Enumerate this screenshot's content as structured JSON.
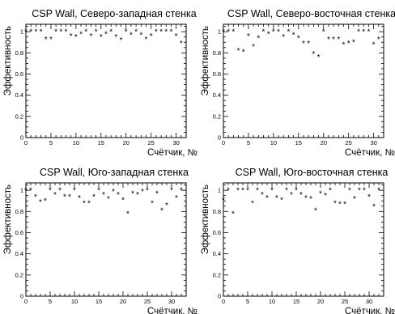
{
  "chart_data": [
    {
      "type": "scatter",
      "title": "CSP Wall, Северо-западная стенка",
      "xlabel": "Счётчик, №",
      "ylabel": "Эффективность",
      "xlim": [
        0,
        32
      ],
      "ylim": [
        0,
        1.07
      ],
      "xticks": [
        0,
        5,
        10,
        15,
        20,
        25,
        30
      ],
      "yticks": [
        0,
        0.2,
        0.4,
        0.6,
        0.8,
        1
      ],
      "marker": "*",
      "grid": false,
      "x": [
        0,
        1,
        2,
        3,
        4,
        5,
        6,
        7,
        8,
        9,
        10,
        11,
        12,
        13,
        14,
        15,
        16,
        17,
        18,
        19,
        20,
        21,
        22,
        23,
        24,
        25,
        26,
        27,
        28,
        29,
        30,
        31
      ],
      "y": [
        1,
        1,
        1,
        1,
        0.93,
        0.93,
        1,
        1,
        1,
        0.96,
        0.95,
        0.98,
        1,
        0.96,
        1,
        0.95,
        0.98,
        1,
        0.95,
        0.92,
        1,
        0.97,
        1,
        0.97,
        0.93,
        0.96,
        1,
        1,
        1,
        1,
        0.96,
        0.89
      ]
    },
    {
      "type": "scatter",
      "title": "CSP Wall, Северо-восточная стенка",
      "xlabel": "Счётчик, №",
      "ylabel": "Эффективность",
      "xlim": [
        0,
        32
      ],
      "ylim": [
        0,
        1.07
      ],
      "xticks": [
        0,
        5,
        10,
        15,
        20,
        25,
        30
      ],
      "yticks": [
        0,
        0.2,
        0.4,
        0.6,
        0.8,
        1
      ],
      "marker": "*",
      "grid": false,
      "x": [
        0,
        1,
        2,
        3,
        4,
        5,
        6,
        7,
        8,
        9,
        10,
        11,
        12,
        13,
        14,
        15,
        16,
        17,
        18,
        19,
        20,
        21,
        22,
        23,
        24,
        25,
        26,
        27,
        28,
        29,
        30,
        31
      ],
      "y": [
        1,
        1,
        1,
        0.82,
        0.81,
        0.96,
        0.86,
        0.94,
        1,
        0.98,
        1,
        1,
        0.95,
        1,
        0.97,
        0.94,
        0.89,
        0.89,
        0.79,
        0.76,
        1,
        0.93,
        0.93,
        0.93,
        0.88,
        0.89,
        0.9,
        1,
        1,
        1,
        0.88,
        0.93
      ]
    },
    {
      "type": "scatter",
      "title": "CSP Wall, Юго-западная стенка",
      "xlabel": "Счётчик, №",
      "ylabel": "Эффективность",
      "xlim": [
        0,
        33
      ],
      "ylim": [
        0,
        1.07
      ],
      "xticks": [
        0,
        5,
        10,
        15,
        20,
        25,
        30
      ],
      "yticks": [
        0,
        0.2,
        0.4,
        0.6,
        0.8,
        1
      ],
      "marker": "*",
      "grid": false,
      "x": [
        0,
        1,
        2,
        3,
        4,
        5,
        6,
        7,
        8,
        9,
        10,
        11,
        12,
        13,
        14,
        15,
        16,
        17,
        18,
        19,
        20,
        21,
        22,
        23,
        24,
        25,
        26,
        27,
        28,
        29,
        30,
        31,
        32
      ],
      "y": [
        1,
        1,
        0.94,
        0.89,
        0.9,
        1,
        0.96,
        1,
        0.94,
        0.94,
        1,
        0.93,
        0.88,
        0.88,
        0.94,
        1,
        0.96,
        0.92,
        0.99,
        0.96,
        0.91,
        0.78,
        0.97,
        0.96,
        0.99,
        1,
        0.88,
        0.97,
        0.81,
        0.86,
        1,
        0.93,
        1
      ]
    },
    {
      "type": "scatter",
      "title": "CSP Wall, Юго-восточная стенка",
      "xlabel": "Счётчик, №",
      "ylabel": "Эффективность",
      "xlim": [
        0,
        33
      ],
      "ylim": [
        0,
        1.07
      ],
      "xticks": [
        0,
        5,
        10,
        15,
        20,
        25,
        30
      ],
      "yticks": [
        0,
        0.2,
        0.4,
        0.6,
        0.8,
        1
      ],
      "marker": "*",
      "grid": false,
      "x": [
        0,
        1,
        2,
        3,
        4,
        5,
        6,
        7,
        8,
        9,
        10,
        11,
        12,
        13,
        14,
        15,
        16,
        17,
        18,
        19,
        20,
        21,
        22,
        23,
        24,
        25,
        26,
        27,
        28,
        29,
        30,
        31,
        32
      ],
      "y": [
        0.91,
        1,
        0.78,
        1,
        1,
        1,
        0.88,
        1,
        0.96,
        0.93,
        1,
        0.93,
        0.91,
        1,
        0.96,
        1,
        0.96,
        0.93,
        0.92,
        0.81,
        0.97,
        0.95,
        1,
        0.88,
        0.87,
        0.87,
        1,
        0.92,
        1,
        1,
        0.94,
        0.85,
        1
      ]
    }
  ]
}
